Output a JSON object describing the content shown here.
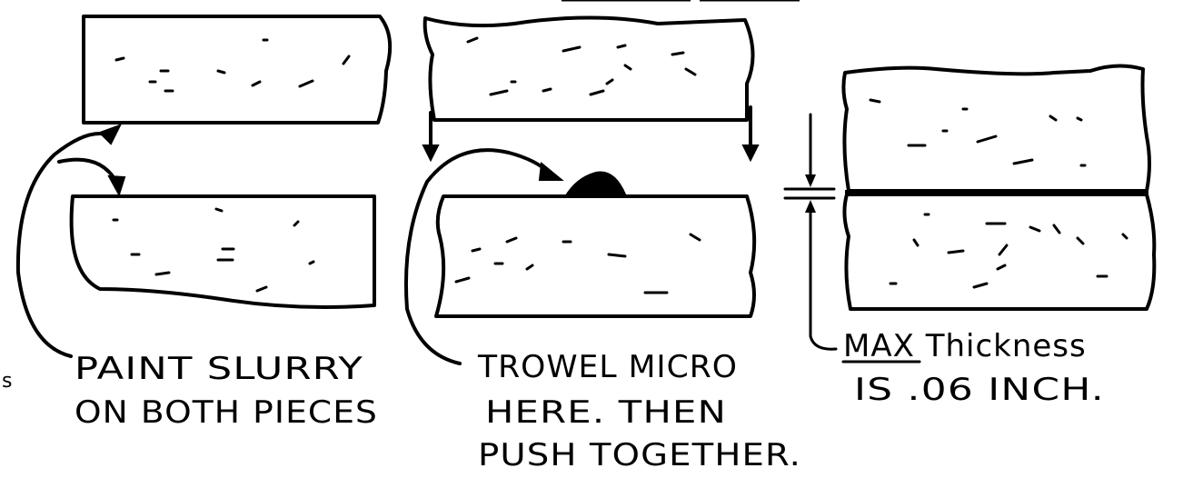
{
  "diagram": {
    "top_fragment": "",
    "steps": [
      {
        "id": "paint",
        "label_lines": [
          "PAINT SLURRY",
          "ON BOTH PIECES"
        ]
      },
      {
        "id": "trowel",
        "label_lines": [
          "TROWEL MICRO",
          "HERE. THEN",
          "PUSH TOGETHER."
        ]
      },
      {
        "id": "thickness",
        "label_emphasis": "MAX",
        "label_rest": " Thickness",
        "label_line2": "IS .06 INCH."
      }
    ],
    "edge_mark": "s"
  }
}
